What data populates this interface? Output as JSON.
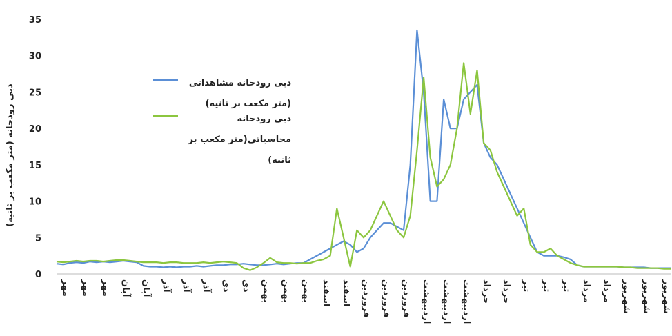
{
  "chart_data": {
    "type": "line",
    "y_label": "دبی رودخانه (متر مکعب بر ثانیه)",
    "categories": [
      null,
      "مهر",
      null,
      null,
      "مهر",
      null,
      null,
      "مهر",
      null,
      null,
      "آبان",
      null,
      null,
      "آبان",
      null,
      null,
      "آذر",
      null,
      null,
      "آذر",
      null,
      null,
      "آذر",
      null,
      null,
      "دی",
      null,
      null,
      "دی",
      null,
      null,
      "بهمن",
      null,
      null,
      "بهمن",
      null,
      null,
      "بهمن",
      null,
      null,
      "اسفند",
      null,
      null,
      "اسفند",
      null,
      null,
      "فروردین",
      null,
      null,
      "فروردین",
      null,
      null,
      "فروردین",
      null,
      null,
      "اردیبهشت",
      null,
      null,
      "اردیبهشت",
      null,
      null,
      "اردیبهشت",
      null,
      null,
      "خرداد",
      null,
      null,
      "خرداد",
      null,
      null,
      "تیر",
      null,
      null,
      "تیر",
      null,
      null,
      "تیر",
      null,
      null,
      "مرداد",
      null,
      null,
      "مرداد",
      null,
      null,
      "شهریور",
      null,
      null,
      "شهریور",
      null,
      null,
      "شهریور",
      null
    ],
    "series": [
      {
        "name": "دبی رودخانه مشاهداتی (متر مکعب بر ثانیه)",
        "color": "#5b8fd6",
        "values": [
          1.4,
          1.3,
          1.5,
          1.6,
          1.5,
          1.7,
          1.6,
          1.7,
          1.6,
          1.7,
          1.8,
          1.7,
          1.6,
          1.1,
          1.0,
          1.0,
          0.9,
          1.0,
          0.9,
          1.0,
          1.0,
          1.1,
          1.0,
          1.1,
          1.2,
          1.2,
          1.3,
          1.3,
          1.4,
          1.3,
          1.2,
          1.2,
          1.3,
          1.4,
          1.3,
          1.4,
          1.5,
          1.5,
          2,
          2.5,
          3,
          3.5,
          4,
          4.5,
          4,
          3,
          3.5,
          5,
          6,
          7,
          7,
          6.5,
          6,
          15,
          33.5,
          25,
          10,
          10,
          24,
          20,
          20,
          24,
          25,
          26,
          18,
          16,
          15,
          13,
          11,
          9,
          7,
          5,
          3,
          2.5,
          2.5,
          2.5,
          2.3,
          2,
          1.2,
          1.0,
          1.0,
          1.0,
          1.0,
          1.0,
          1.0,
          0.9,
          0.9,
          0.9,
          0.9,
          0.8,
          0.8,
          0.8,
          0.8
        ]
      },
      {
        "name": "دبی رودخانه محاسباتی(متر مکعب بر ثانیه)",
        "color": "#8cc63f",
        "values": [
          1.7,
          1.6,
          1.7,
          1.8,
          1.7,
          1.8,
          1.8,
          1.7,
          1.8,
          1.9,
          1.9,
          1.8,
          1.7,
          1.6,
          1.6,
          1.6,
          1.5,
          1.6,
          1.6,
          1.5,
          1.5,
          1.5,
          1.6,
          1.5,
          1.6,
          1.7,
          1.6,
          1.5,
          0.8,
          0.5,
          0.9,
          1.5,
          2.2,
          1.6,
          1.5,
          1.5,
          1.4,
          1.5,
          1.5,
          1.8,
          2,
          2.5,
          9,
          5,
          1,
          6,
          5,
          6,
          8,
          10,
          8,
          6,
          5,
          8,
          17,
          27,
          16,
          12,
          13,
          15,
          20,
          29,
          22,
          28,
          18,
          17,
          14,
          12,
          10,
          8,
          9,
          4,
          3,
          3,
          3.5,
          2.5,
          2,
          1.5,
          1.2,
          1,
          1,
          1,
          1,
          1,
          1,
          0.9,
          0.9,
          0.8,
          0.8,
          0.8,
          0.8,
          0.7,
          0.7
        ]
      }
    ],
    "ylim": [
      0,
      35
    ],
    "yticks": [
      0,
      5,
      10,
      15,
      20,
      25,
      30,
      35
    ],
    "grid": false
  }
}
